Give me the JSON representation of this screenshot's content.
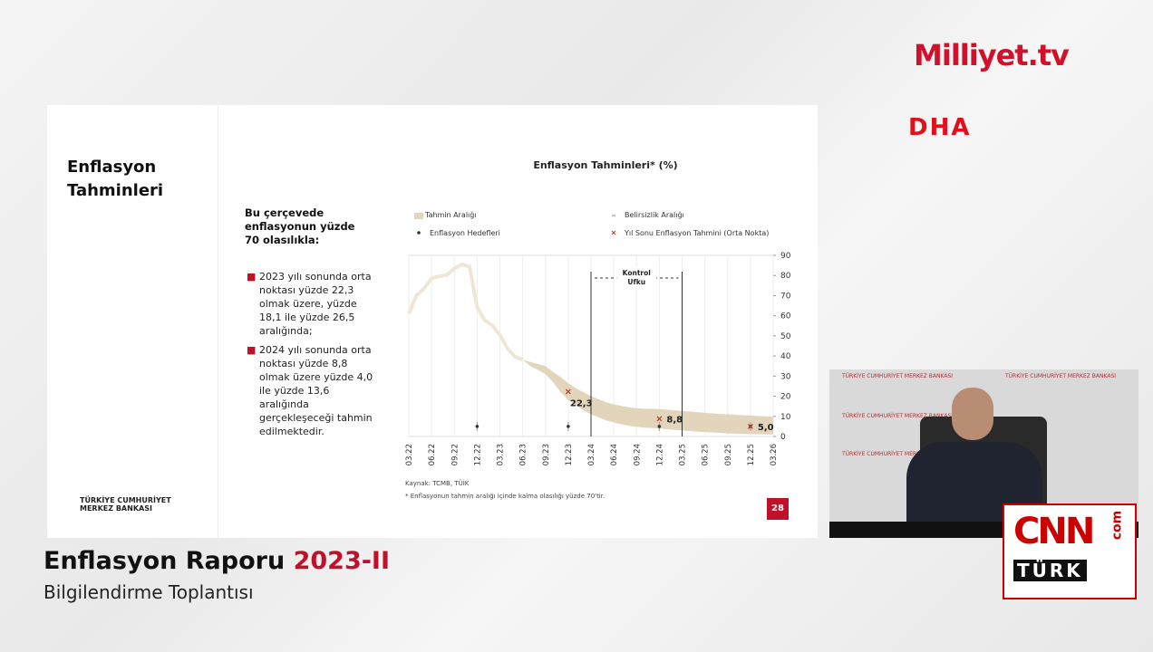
{
  "branding": {
    "channel": "Milliyet.tv",
    "agency": "DHA",
    "cnn": "CNN",
    "turk": "TÜRK",
    "com": "com"
  },
  "slide": {
    "heading": [
      "Enflasyon",
      "Tahminleri"
    ],
    "intro": "Bu çerçevede enflasyonun yüzde 70 olasılıkla:",
    "bullets": [
      "2023 yılı sonunda orta noktası yüzde 22,3 olmak üzere, yüzde 18,1 ile yüzde 26,5 aralığında;",
      "2024 yılı sonunda orta noktası yüzde 8,8 olmak üzere yüzde 4,0 ile yüzde 13,6 aralığında gerçekleşeceği tahmin edilmektedir."
    ],
    "logo": [
      "TÜRKİYE CUMHURİYET",
      "MERKEZ BANKASI"
    ],
    "source": "Kaynak: TCMB, TÜİK",
    "footnote": "* Enflasyonun tahmin aralığı içinde kalma olasılığı yüzde 70'tir.",
    "page": "28"
  },
  "lower_third": {
    "title": "Enflasyon Raporu",
    "edition": "2023-II",
    "subtitle": "Bilgilendirme Toplantısı"
  },
  "video": {
    "backdrop": "TÜRKİYE CUMHURİYET MERKEZ BANKASI"
  },
  "chart_data": {
    "type": "line",
    "title": "Enflasyon Tahminleri* (%)",
    "categories": [
      "03.22",
      null,
      null,
      "06.22",
      null,
      null,
      "09.22",
      null,
      null,
      "12.22",
      null,
      null,
      "03.23",
      null,
      null,
      "06.23",
      null,
      null,
      "09.23",
      null,
      null,
      "12.23",
      null,
      null,
      "03.24",
      null,
      null,
      "06.24",
      null,
      null,
      "09.24",
      null,
      null,
      "12.24",
      null,
      null,
      "03.25",
      null,
      null,
      "06.25",
      null,
      null,
      "09.25",
      null,
      null,
      "12.25",
      null,
      null,
      "03.26"
    ],
    "ylim": [
      0,
      90
    ],
    "yticks": [
      0,
      10,
      20,
      30,
      40,
      50,
      60,
      70,
      80,
      90
    ],
    "grid": true,
    "line": {
      "color": "#efe6d6",
      "values": [
        61.1,
        70,
        73.5,
        78.6,
        79.6,
        80.2,
        83.5,
        85.5,
        84.4,
        64.3,
        57.7,
        55.2,
        50.5,
        43.7,
        39.6,
        38.2,
        null,
        null,
        null,
        null,
        null,
        null,
        null,
        null,
        null,
        null,
        null,
        null,
        null,
        null,
        null,
        null,
        null,
        null,
        null,
        null,
        null,
        null,
        null,
        null,
        null,
        null,
        null,
        null,
        null,
        null,
        null,
        null,
        null
      ]
    },
    "band": {
      "name": "Tahmin Aralığı",
      "color": "#e2d5bc",
      "upper": [
        null,
        null,
        null,
        null,
        null,
        null,
        null,
        null,
        null,
        null,
        null,
        null,
        null,
        null,
        null,
        38.2,
        37,
        36,
        35,
        32,
        29.5,
        26.5,
        24,
        22,
        20,
        18.5,
        17,
        16,
        15.2,
        14.5,
        14,
        13.8,
        13.7,
        13.6,
        13.3,
        13,
        12.7,
        12.4,
        12.1,
        11.8,
        11.5,
        11.2,
        11,
        10.8,
        10.6,
        10.4,
        10.2,
        10,
        9.8
      ],
      "lower": [
        null,
        null,
        null,
        null,
        null,
        null,
        null,
        null,
        null,
        null,
        null,
        null,
        null,
        null,
        null,
        38.2,
        35,
        33,
        31,
        27,
        22,
        18.1,
        15.5,
        13,
        11,
        9.5,
        8,
        7,
        6,
        5.3,
        4.8,
        4.4,
        4.2,
        4,
        3.6,
        3.3,
        3,
        2.7,
        2.4,
        2.2,
        2,
        1.8,
        1.6,
        1.4,
        1.3,
        1.2,
        1.1,
        1,
        1
      ]
    },
    "uncertainty": {
      "name": "Belirsizlik Aralığı",
      "color": "#888888"
    },
    "targets": {
      "name": "Enflasyon Hedefleri",
      "color": "#333333",
      "categories": [
        "12.22",
        "12.23",
        "12.24",
        "12.25"
      ],
      "values": [
        5,
        5,
        5,
        5
      ]
    },
    "midpoints": {
      "name": "Yıl Sonu Enflasyon Tahmini (Orta Nokta)",
      "color": "#c0392b",
      "categories": [
        "12.23",
        "12.24",
        "12.25"
      ],
      "values": [
        22.3,
        8.8,
        5.0
      ],
      "value_labels": [
        "22,3",
        "8,8",
        "5,0"
      ]
    },
    "control_horizon": {
      "label": [
        "Kontrol",
        "Ufku"
      ],
      "from": "03.24",
      "to": "03.25"
    }
  }
}
